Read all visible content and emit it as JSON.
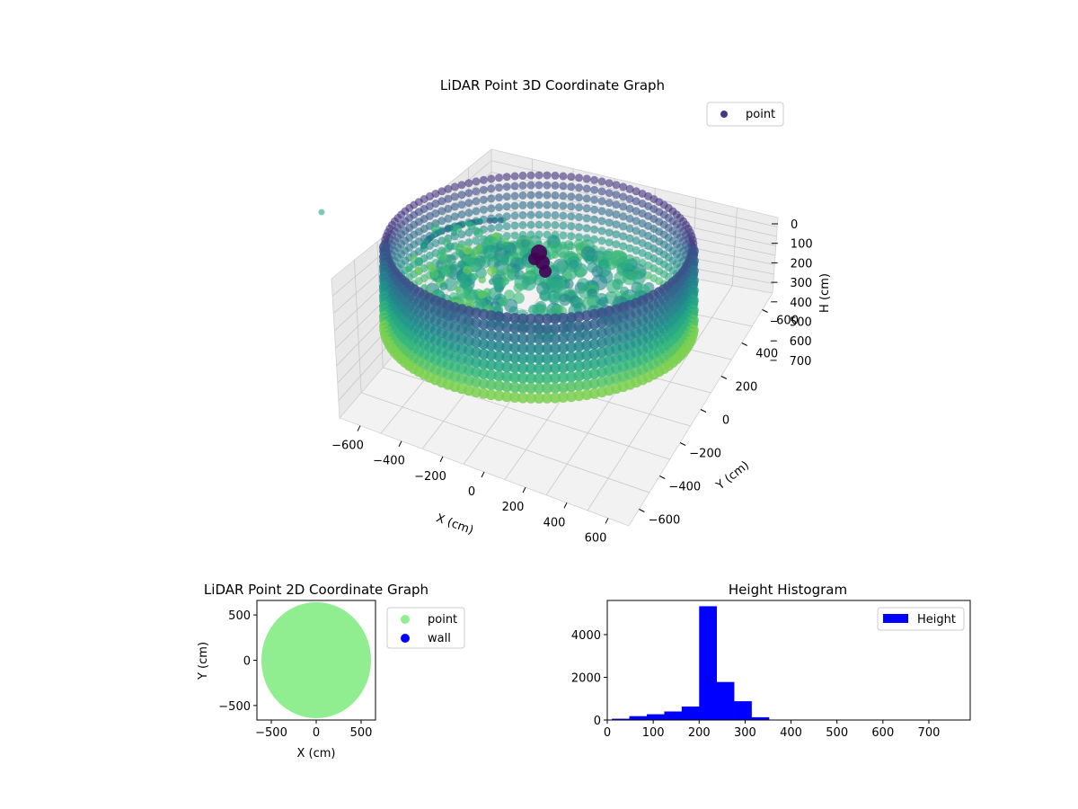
{
  "chart_data": [
    {
      "type": "scatter3d",
      "title": "LiDAR Point 3D Coordinate Graph",
      "xlabel": "X (cm)",
      "ylabel": "Y (cm)",
      "zlabel": "H (cm)",
      "xticks": [
        -600,
        -400,
        -200,
        0,
        200,
        400,
        600
      ],
      "yticks": [
        -600,
        -400,
        -200,
        0,
        200,
        400,
        600
      ],
      "zticks": [
        0,
        100,
        200,
        300,
        400,
        500,
        600,
        700
      ],
      "z_inverted": true,
      "legend": {
        "position": "top-right",
        "entries": [
          {
            "label": "point",
            "color": "#443983"
          }
        ]
      },
      "colormap": "viridis",
      "description_data": {
        "ring_radius_cm": 560,
        "wall_height_range_cm": [
          200,
          310
        ],
        "outlier_point": {
          "x": -650,
          "y": 600,
          "h": 210
        }
      }
    },
    {
      "type": "scatter",
      "title": "LiDAR Point 2D Coordinate Graph",
      "xlabel": "X (cm)",
      "ylabel": "Y (cm)",
      "xlim": [
        -660,
        660
      ],
      "ylim": [
        -660,
        660
      ],
      "xticks": [
        -500,
        0,
        500
      ],
      "yticks": [
        -500,
        0,
        500
      ],
      "series": [
        {
          "name": "point",
          "color": "#90ee90",
          "shape": "disk",
          "radius_cm": 610,
          "center": [
            0,
            0
          ]
        },
        {
          "name": "wall",
          "color": "#0000ff",
          "points": []
        }
      ],
      "legend": {
        "position": "outside-right"
      }
    },
    {
      "type": "bar",
      "title": "Height Histogram",
      "series": [
        {
          "name": "Height",
          "color": "#0000ff"
        }
      ],
      "bin_edges": [
        10,
        48,
        86,
        124,
        162,
        200,
        238,
        276,
        314,
        352,
        390,
        428,
        466,
        504,
        542,
        580,
        618,
        656,
        694,
        732,
        770
      ],
      "values": [
        60,
        180,
        270,
        400,
        630,
        5330,
        1780,
        880,
        130,
        10,
        5,
        3,
        3,
        2,
        2,
        2,
        2,
        2,
        2,
        2
      ],
      "xlim": [
        0,
        790
      ],
      "ylim": [
        0,
        5600
      ],
      "xticks": [
        0,
        100,
        200,
        300,
        400,
        500,
        600,
        700
      ],
      "yticks": [
        0,
        2000,
        4000
      ],
      "legend": {
        "position": "top-right"
      }
    }
  ]
}
